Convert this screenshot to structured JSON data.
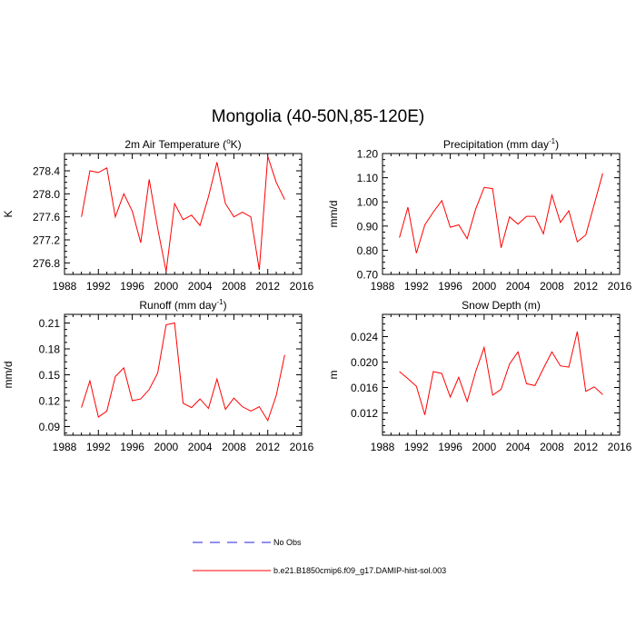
{
  "figure": {
    "title": "Mongolia (40-50N,85-120E)"
  },
  "legend": [
    {
      "label": "No Obs",
      "color": "#2222dd",
      "dash": "dashed"
    },
    {
      "label": "b.e21.B1850cmip6.f09_g17.DAMIP-hist-sol.003",
      "color": "#ff0000",
      "dash": "solid"
    }
  ],
  "chart_data": [
    {
      "type": "line",
      "title_main": "2m Air Temperature (",
      "title_sup": "o",
      "title_tail": "K)",
      "ylabel": "K",
      "xlim": [
        1988,
        2016
      ],
      "ylim": [
        276.6,
        278.7
      ],
      "xticks": [
        1988,
        1992,
        1996,
        2000,
        2004,
        2008,
        2012,
        2016
      ],
      "yticks": [
        276.8,
        277.2,
        277.6,
        278.0,
        278.4
      ],
      "ytick_labels": [
        "276.8",
        "277.2",
        "277.6",
        "278.0",
        "278.4"
      ],
      "x": [
        1990,
        1991,
        1992,
        1993,
        1994,
        1995,
        1996,
        1997,
        1998,
        1999,
        2000,
        2001,
        2002,
        2003,
        2004,
        2005,
        2006,
        2007,
        2008,
        2009,
        2010,
        2011,
        2012,
        2013,
        2014
      ],
      "series": [
        {
          "color": "#ff0000",
          "values": [
            277.6,
            278.4,
            278.37,
            278.45,
            277.6,
            278.0,
            277.7,
            277.15,
            278.25,
            277.4,
            276.65,
            277.83,
            277.55,
            277.63,
            277.45,
            277.95,
            278.55,
            277.83,
            277.6,
            277.68,
            277.6,
            276.68,
            278.65,
            278.2,
            277.9
          ]
        }
      ]
    },
    {
      "type": "line",
      "title_main": "Precipitation (mm day",
      "title_sup": "-1",
      "title_tail": ")",
      "ylabel": "mm/d",
      "xlim": [
        1988,
        2016
      ],
      "ylim": [
        0.7,
        1.2
      ],
      "xticks": [
        1988,
        1992,
        1996,
        2000,
        2004,
        2008,
        2012,
        2016
      ],
      "yticks": [
        0.7,
        0.8,
        0.9,
        1.0,
        1.1,
        1.2
      ],
      "ytick_labels": [
        "0.70",
        "0.80",
        "0.90",
        "1.00",
        "1.10",
        "1.20"
      ],
      "x": [
        1990,
        1991,
        1992,
        1993,
        1994,
        1995,
        1996,
        1997,
        1998,
        1999,
        2000,
        2001,
        2002,
        2003,
        2004,
        2005,
        2006,
        2007,
        2008,
        2009,
        2010,
        2011,
        2012,
        2013,
        2014
      ],
      "series": [
        {
          "color": "#ff0000",
          "values": [
            0.852,
            0.978,
            0.788,
            0.905,
            0.958,
            1.005,
            0.895,
            0.905,
            0.848,
            0.97,
            1.06,
            1.055,
            0.81,
            0.938,
            0.908,
            0.94,
            0.94,
            0.868,
            1.028,
            0.915,
            0.963,
            0.835,
            0.863,
            0.99,
            1.118
          ]
        }
      ]
    },
    {
      "type": "line",
      "title_main": "Runoff (mm day",
      "title_sup": "-1",
      "title_tail": ")",
      "ylabel": "mm/d",
      "xlim": [
        1988,
        2016
      ],
      "ylim": [
        0.08,
        0.22
      ],
      "xticks": [
        1988,
        1992,
        1996,
        2000,
        2004,
        2008,
        2012,
        2016
      ],
      "yticks": [
        0.09,
        0.12,
        0.15,
        0.18,
        0.21
      ],
      "ytick_labels": [
        "0.09",
        "0.12",
        "0.15",
        "0.18",
        "0.21"
      ],
      "x": [
        1990,
        1991,
        1992,
        1993,
        1994,
        1995,
        1996,
        1997,
        1998,
        1999,
        2000,
        2001,
        2002,
        2003,
        2004,
        2005,
        2006,
        2007,
        2008,
        2009,
        2010,
        2011,
        2012,
        2013,
        2014
      ],
      "series": [
        {
          "color": "#ff0000",
          "values": [
            0.112,
            0.143,
            0.101,
            0.108,
            0.148,
            0.158,
            0.12,
            0.122,
            0.133,
            0.152,
            0.208,
            0.21,
            0.117,
            0.112,
            0.122,
            0.111,
            0.145,
            0.11,
            0.123,
            0.113,
            0.108,
            0.113,
            0.097,
            0.126,
            0.173
          ]
        }
      ]
    },
    {
      "type": "line",
      "title_main": "Snow Depth (m)",
      "title_sup": "",
      "title_tail": "",
      "ylabel": "m",
      "xlim": [
        1988,
        2016
      ],
      "ylim": [
        0.0085,
        0.0275
      ],
      "xticks": [
        1988,
        1992,
        1996,
        2000,
        2004,
        2008,
        2012,
        2016
      ],
      "yticks": [
        0.012,
        0.016,
        0.02,
        0.024
      ],
      "ytick_labels": [
        "0.012",
        "0.016",
        "0.020",
        "0.024"
      ],
      "x": [
        1990,
        1991,
        1992,
        1993,
        1994,
        1995,
        1996,
        1997,
        1998,
        1999,
        2000,
        2001,
        2002,
        2003,
        2004,
        2005,
        2006,
        2007,
        2008,
        2009,
        2010,
        2011,
        2012,
        2013,
        2014
      ],
      "series": [
        {
          "color": "#ff0000",
          "values": [
            0.0185,
            0.0174,
            0.0162,
            0.0117,
            0.0185,
            0.0182,
            0.0145,
            0.0176,
            0.0138,
            0.0185,
            0.0223,
            0.0148,
            0.0157,
            0.0197,
            0.0216,
            0.0166,
            0.0163,
            0.019,
            0.0216,
            0.0194,
            0.0192,
            0.0248,
            0.0154,
            0.0161,
            0.0149
          ]
        }
      ]
    }
  ]
}
